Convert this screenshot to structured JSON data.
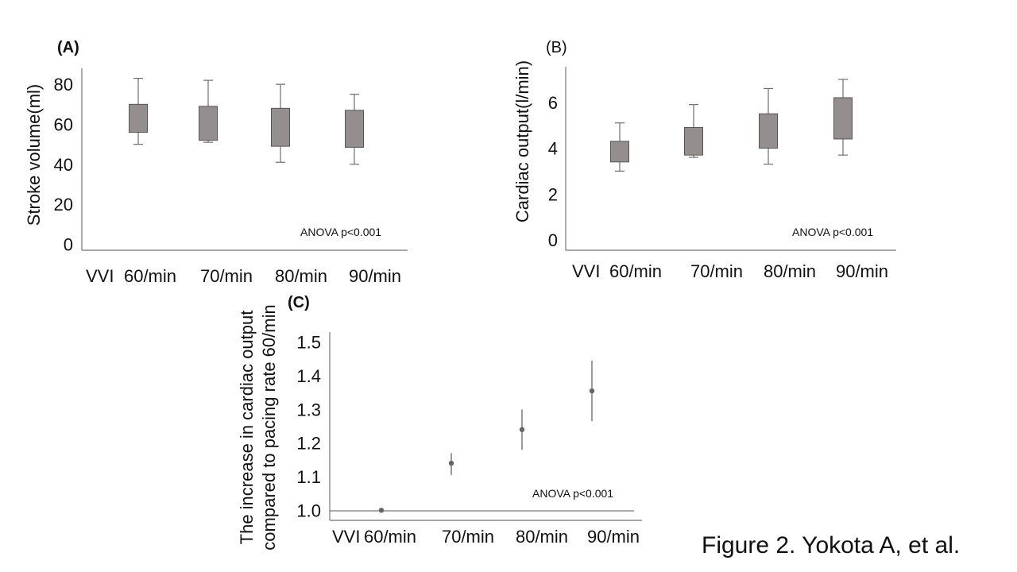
{
  "caption": "Figure 2. Yokota A, et al.",
  "chart_data": [
    {
      "id": "A",
      "type": "box",
      "panel_label": "(A)",
      "ylabel": "Stroke volume(ml)",
      "y_ticks": [
        "0",
        "20",
        "40",
        "60",
        "80"
      ],
      "y_tick_values": [
        0,
        20,
        40,
        60,
        80
      ],
      "ylim": [
        -3,
        88
      ],
      "category_prefix": "VVI",
      "categories": [
        "60/min",
        "70/min",
        "80/min",
        "90/min"
      ],
      "boxes": [
        {
          "min": 50,
          "q1": 56,
          "q3": 70,
          "max": 83
        },
        {
          "min": 51,
          "q1": 52,
          "q3": 69,
          "max": 82
        },
        {
          "min": 41,
          "q1": 49,
          "q3": 68,
          "max": 80
        },
        {
          "min": 40,
          "q1": 48.5,
          "q3": 67,
          "max": 75
        }
      ],
      "annotation": "ANOVA p<0.001"
    },
    {
      "id": "B",
      "type": "box",
      "panel_label": "(B)",
      "ylabel": "Cardiac output(l/min)",
      "y_ticks": [
        "0",
        "2",
        "4",
        "6"
      ],
      "y_tick_values": [
        0,
        2,
        4,
        6
      ],
      "ylim": [
        -0.45,
        7.55
      ],
      "category_prefix": "VVI",
      "categories": [
        "60/min",
        "70/min",
        "80/min",
        "90/min"
      ],
      "boxes": [
        {
          "min": 3.0,
          "q1": 3.4,
          "q3": 4.3,
          "max": 5.1
        },
        {
          "min": 3.6,
          "q1": 3.7,
          "q3": 4.9,
          "max": 5.9
        },
        {
          "min": 3.3,
          "q1": 4.0,
          "q3": 5.5,
          "max": 6.6
        },
        {
          "min": 3.7,
          "q1": 4.4,
          "q3": 6.2,
          "max": 7.0
        }
      ],
      "annotation": "ANOVA p<0.001"
    },
    {
      "id": "C",
      "type": "errorbar",
      "panel_label": "(C)",
      "ylabel_line1": "The increase in cardiac output",
      "ylabel_line2": "compared to pacing rate 60/min",
      "y_ticks": [
        "1.0",
        "1.1",
        "1.2",
        "1.3",
        "1.4",
        "1.5"
      ],
      "y_tick_values": [
        1.0,
        1.1,
        1.2,
        1.3,
        1.4,
        1.5
      ],
      "ylim": [
        0.97,
        1.53
      ],
      "category_prefix": "VVI",
      "categories": [
        "60/min",
        "70/min",
        "80/min",
        "90/min"
      ],
      "points": [
        {
          "y": 1.0,
          "low": 1.0,
          "high": 1.0
        },
        {
          "y": 1.14,
          "low": 1.105,
          "high": 1.17
        },
        {
          "y": 1.24,
          "low": 1.18,
          "high": 1.3
        },
        {
          "y": 1.355,
          "low": 1.265,
          "high": 1.445
        }
      ],
      "reference_line": 1.0,
      "annotation": "ANOVA p<0.001"
    }
  ]
}
